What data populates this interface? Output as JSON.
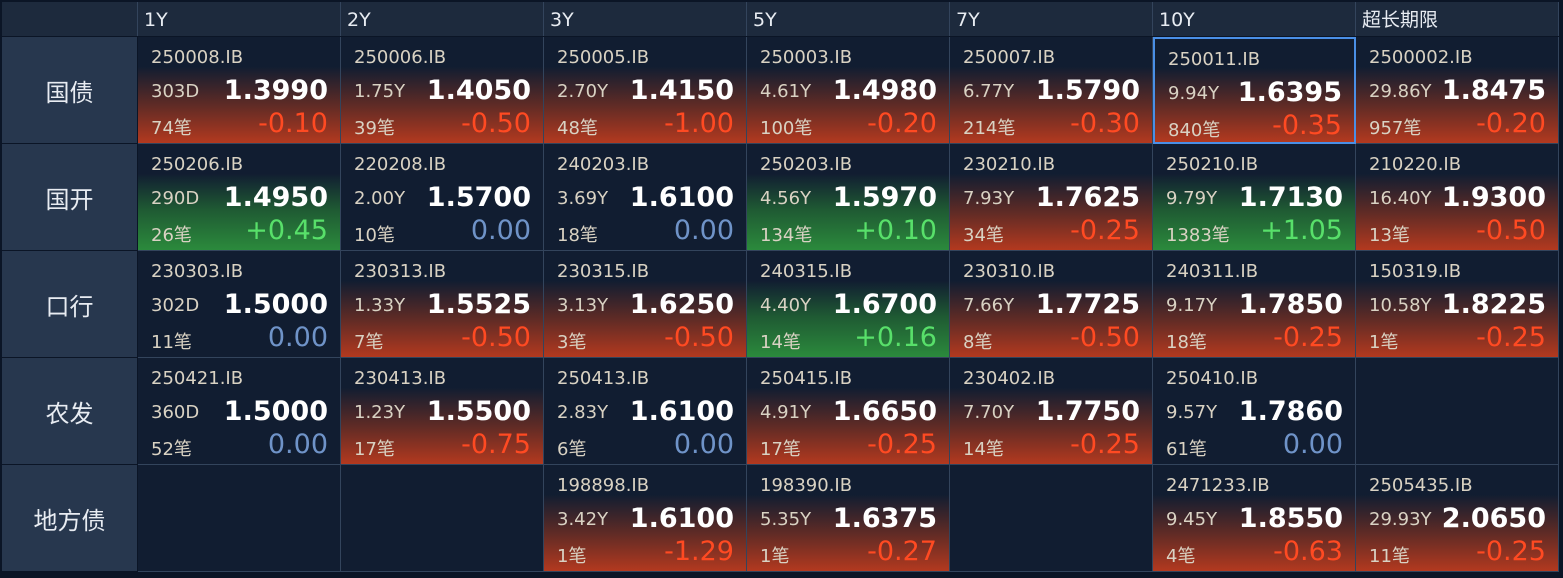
{
  "header": {
    "columns": [
      "1Y",
      "2Y",
      "3Y",
      "5Y",
      "7Y",
      "10Y",
      "超长期限"
    ]
  },
  "rows": [
    {
      "label": "国债",
      "cells": [
        {
          "code": "250008.IB",
          "term": "303D",
          "yield": "1.3990",
          "count": "74笔",
          "change": "-0.10"
        },
        {
          "code": "250006.IB",
          "term": "1.75Y",
          "yield": "1.4050",
          "count": "39笔",
          "change": "-0.50"
        },
        {
          "code": "250005.IB",
          "term": "2.70Y",
          "yield": "1.4150",
          "count": "48笔",
          "change": "-1.00"
        },
        {
          "code": "250003.IB",
          "term": "4.61Y",
          "yield": "1.4980",
          "count": "100笔",
          "change": "-0.20"
        },
        {
          "code": "250007.IB",
          "term": "6.77Y",
          "yield": "1.5790",
          "count": "214笔",
          "change": "-0.30"
        },
        {
          "code": "250011.IB",
          "term": "9.94Y",
          "yield": "1.6395",
          "count": "840笔",
          "change": "-0.35",
          "selected": true
        },
        {
          "code": "2500002.IB",
          "term": "29.86Y",
          "yield": "1.8475",
          "count": "957笔",
          "change": "-0.20"
        }
      ]
    },
    {
      "label": "国开",
      "cells": [
        {
          "code": "250206.IB",
          "term": "290D",
          "yield": "1.4950",
          "count": "26笔",
          "change": "+0.45"
        },
        {
          "code": "220208.IB",
          "term": "2.00Y",
          "yield": "1.5700",
          "count": "10笔",
          "change": "0.00"
        },
        {
          "code": "240203.IB",
          "term": "3.69Y",
          "yield": "1.6100",
          "count": "18笔",
          "change": "0.00"
        },
        {
          "code": "250203.IB",
          "term": "4.56Y",
          "yield": "1.5970",
          "count": "134笔",
          "change": "+0.10"
        },
        {
          "code": "230210.IB",
          "term": "7.93Y",
          "yield": "1.7625",
          "count": "34笔",
          "change": "-0.25"
        },
        {
          "code": "250210.IB",
          "term": "9.79Y",
          "yield": "1.7130",
          "count": "1383笔",
          "change": "+1.05"
        },
        {
          "code": "210220.IB",
          "term": "16.40Y",
          "yield": "1.9300",
          "count": "13笔",
          "change": "-0.50"
        }
      ]
    },
    {
      "label": "口行",
      "cells": [
        {
          "code": "230303.IB",
          "term": "302D",
          "yield": "1.5000",
          "count": "11笔",
          "change": "0.00"
        },
        {
          "code": "230313.IB",
          "term": "1.33Y",
          "yield": "1.5525",
          "count": "7笔",
          "change": "-0.50"
        },
        {
          "code": "230315.IB",
          "term": "3.13Y",
          "yield": "1.6250",
          "count": "3笔",
          "change": "-0.50"
        },
        {
          "code": "240315.IB",
          "term": "4.40Y",
          "yield": "1.6700",
          "count": "14笔",
          "change": "+0.16"
        },
        {
          "code": "230310.IB",
          "term": "7.66Y",
          "yield": "1.7725",
          "count": "8笔",
          "change": "-0.50"
        },
        {
          "code": "240311.IB",
          "term": "9.17Y",
          "yield": "1.7850",
          "count": "18笔",
          "change": "-0.25"
        },
        {
          "code": "150319.IB",
          "term": "10.58Y",
          "yield": "1.8225",
          "count": "1笔",
          "change": "-0.25"
        }
      ]
    },
    {
      "label": "农发",
      "cells": [
        {
          "code": "250421.IB",
          "term": "360D",
          "yield": "1.5000",
          "count": "52笔",
          "change": "0.00"
        },
        {
          "code": "230413.IB",
          "term": "1.23Y",
          "yield": "1.5500",
          "count": "17笔",
          "change": "-0.75"
        },
        {
          "code": "250413.IB",
          "term": "2.83Y",
          "yield": "1.6100",
          "count": "6笔",
          "change": "0.00"
        },
        {
          "code": "250415.IB",
          "term": "4.91Y",
          "yield": "1.6650",
          "count": "17笔",
          "change": "-0.25"
        },
        {
          "code": "230402.IB",
          "term": "7.70Y",
          "yield": "1.7750",
          "count": "14笔",
          "change": "-0.25"
        },
        {
          "code": "250410.IB",
          "term": "9.57Y",
          "yield": "1.7860",
          "count": "61笔",
          "change": "0.00"
        },
        null
      ]
    },
    {
      "label": "地方债",
      "cells": [
        null,
        null,
        {
          "code": "198898.IB",
          "term": "3.42Y",
          "yield": "1.6100",
          "count": "1笔",
          "change": "-1.29"
        },
        {
          "code": "198390.IB",
          "term": "5.35Y",
          "yield": "1.6375",
          "count": "1笔",
          "change": "-0.27"
        },
        null,
        {
          "code": "2471233.IB",
          "term": "9.45Y",
          "yield": "1.8550",
          "count": "4笔",
          "change": "-0.63"
        },
        {
          "code": "2505435.IB",
          "term": "29.93Y",
          "yield": "2.0650",
          "count": "11笔",
          "change": "-0.25"
        }
      ]
    }
  ]
}
